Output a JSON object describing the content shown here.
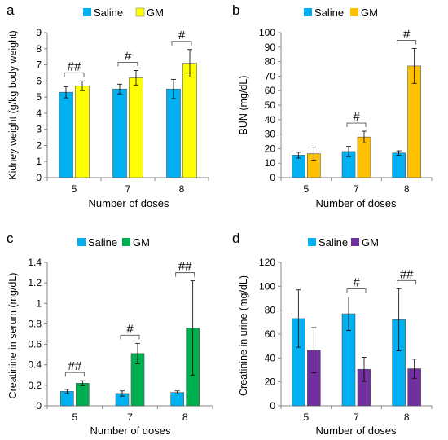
{
  "chart_data": [
    {
      "type": "bar",
      "panel": "a",
      "xlabel": "Number of doses",
      "ylabel": "Kidney weight (g/kg body weight)",
      "categories": [
        "5",
        "7",
        "8"
      ],
      "ylim": [
        0,
        9
      ],
      "yticks": [
        "0",
        "1",
        "2",
        "3",
        "4",
        "5",
        "6",
        "7",
        "8",
        "9"
      ],
      "series": [
        {
          "name": "Saline",
          "color": "#00b0f0",
          "values": [
            5.3,
            5.5,
            5.5
          ],
          "errors": [
            0.35,
            0.3,
            0.6
          ]
        },
        {
          "name": "GM",
          "color": "#ffff00",
          "values": [
            5.7,
            6.2,
            7.1
          ],
          "errors": [
            0.3,
            0.45,
            0.85
          ]
        }
      ],
      "significance": [
        "##",
        "#",
        "#"
      ],
      "grid": false,
      "legend": "top"
    },
    {
      "type": "bar",
      "panel": "b",
      "xlabel": "Number of doses",
      "ylabel": "BUN (mg/dL)",
      "categories": [
        "5",
        "7",
        "8"
      ],
      "ylim": [
        0,
        100
      ],
      "yticks": [
        "0",
        "10",
        "20",
        "30",
        "40",
        "50",
        "60",
        "70",
        "80",
        "90",
        "100"
      ],
      "series": [
        {
          "name": "Saline",
          "color": "#00b0f0",
          "values": [
            15.5,
            18,
            17
          ],
          "errors": [
            2,
            3.5,
            1.5
          ]
        },
        {
          "name": "GM",
          "color": "#ffc000",
          "values": [
            16.5,
            28,
            77
          ],
          "errors": [
            4.5,
            4,
            12
          ]
        }
      ],
      "significance": [
        "",
        "#",
        "#"
      ],
      "grid": false,
      "legend": "top"
    },
    {
      "type": "bar",
      "panel": "c",
      "xlabel": "Number of doses",
      "ylabel": "Creatinine in serum (mg/dL)",
      "categories": [
        "5",
        "7",
        "8"
      ],
      "ylim": [
        0,
        1.4
      ],
      "yticks": [
        "0",
        "0.2",
        "0.4",
        "0.6",
        "0.8",
        "1",
        "1.2",
        "1.4"
      ],
      "series": [
        {
          "name": "Saline",
          "color": "#00b0f0",
          "values": [
            0.14,
            0.12,
            0.13
          ],
          "errors": [
            0.02,
            0.025,
            0.015
          ]
        },
        {
          "name": "GM",
          "color": "#00b050",
          "values": [
            0.22,
            0.51,
            0.76
          ],
          "errors": [
            0.025,
            0.1,
            0.46
          ]
        }
      ],
      "significance": [
        "##",
        "#",
        "##"
      ],
      "grid": false,
      "legend": "top"
    },
    {
      "type": "bar",
      "panel": "d",
      "xlabel": "Number of doses",
      "ylabel": "Creatinine in urine (mg/dL)",
      "categories": [
        "5",
        "7",
        "8"
      ],
      "ylim": [
        0,
        120
      ],
      "yticks": [
        "0",
        "20",
        "40",
        "60",
        "80",
        "100",
        "120"
      ],
      "series": [
        {
          "name": "Saline",
          "color": "#00b0f0",
          "values": [
            73,
            77,
            72
          ],
          "errors": [
            24,
            14,
            26
          ]
        },
        {
          "name": "GM",
          "color": "#7030a0",
          "values": [
            46.5,
            30.5,
            31
          ],
          "errors": [
            19,
            10,
            8
          ]
        }
      ],
      "significance": [
        "",
        "#",
        "##"
      ],
      "grid": false,
      "legend": "top"
    }
  ]
}
